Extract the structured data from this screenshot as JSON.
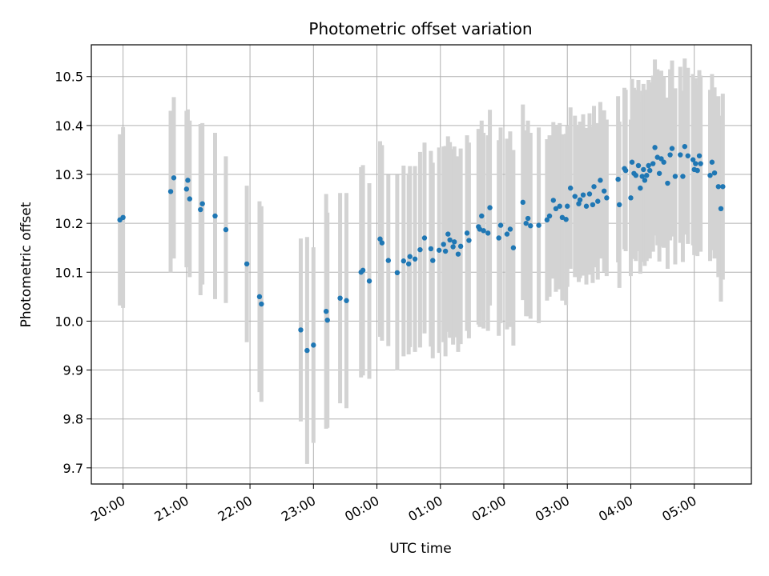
{
  "chart_data": {
    "type": "scatter",
    "title": "Photometric offset variation",
    "xlabel": "UTC time",
    "ylabel": "Photometric offset",
    "x_unit": "hours",
    "xlim": [
      -0.5,
      9.9
    ],
    "ylim": [
      9.667,
      10.565
    ],
    "xticks": [
      {
        "value": 0,
        "label": "20:00"
      },
      {
        "value": 1,
        "label": "21:00"
      },
      {
        "value": 2,
        "label": "22:00"
      },
      {
        "value": 3,
        "label": "23:00"
      },
      {
        "value": 4,
        "label": "00:00"
      },
      {
        "value": 5,
        "label": "01:00"
      },
      {
        "value": 6,
        "label": "02:00"
      },
      {
        "value": 7,
        "label": "03:00"
      },
      {
        "value": 8,
        "label": "04:00"
      },
      {
        "value": 9,
        "label": "05:00"
      }
    ],
    "yticks": [
      {
        "value": 9.7,
        "label": "9.7"
      },
      {
        "value": 9.8,
        "label": "9.8"
      },
      {
        "value": 9.9,
        "label": "9.9"
      },
      {
        "value": 10.0,
        "label": "10.0"
      },
      {
        "value": 10.1,
        "label": "10.1"
      },
      {
        "value": 10.2,
        "label": "10.2"
      },
      {
        "value": 10.3,
        "label": "10.3"
      },
      {
        "value": 10.4,
        "label": "10.4"
      },
      {
        "value": 10.5,
        "label": "10.5"
      }
    ],
    "grid": true,
    "colors": {
      "points": "#1f77b4",
      "errorbars": "#d3d3d3",
      "grid": "#b0b0b0"
    },
    "points": [
      [
        -0.05,
        10.207,
        0.175
      ],
      [
        0.0,
        10.212,
        0.185
      ],
      [
        0.75,
        10.265,
        0.165
      ],
      [
        0.8,
        10.293,
        0.165
      ],
      [
        1.0,
        10.27,
        0.16
      ],
      [
        1.02,
        10.288,
        0.145
      ],
      [
        1.05,
        10.25,
        0.16
      ],
      [
        1.22,
        10.228,
        0.175
      ],
      [
        1.25,
        10.24,
        0.165
      ],
      [
        1.45,
        10.215,
        0.17
      ],
      [
        1.62,
        10.187,
        0.15
      ],
      [
        1.95,
        10.117,
        0.16
      ],
      [
        2.15,
        10.05,
        0.195
      ],
      [
        2.18,
        10.035,
        0.2
      ],
      [
        2.8,
        9.982,
        0.187
      ],
      [
        2.9,
        9.94,
        0.232
      ],
      [
        3.0,
        9.951,
        0.2
      ],
      [
        3.2,
        10.02,
        0.24
      ],
      [
        3.22,
        10.002,
        0.22
      ],
      [
        3.42,
        10.047,
        0.215
      ],
      [
        3.52,
        10.042,
        0.22
      ],
      [
        3.75,
        10.1,
        0.215
      ],
      [
        3.78,
        10.104,
        0.215
      ],
      [
        3.88,
        10.082,
        0.2
      ],
      [
        4.05,
        10.168,
        0.2
      ],
      [
        4.08,
        10.16,
        0.2
      ],
      [
        4.18,
        10.124,
        0.175
      ],
      [
        4.32,
        10.099,
        0.2
      ],
      [
        4.42,
        10.123,
        0.195
      ],
      [
        4.5,
        10.117,
        0.185
      ],
      [
        4.52,
        10.132,
        0.185
      ],
      [
        4.6,
        10.127,
        0.19
      ],
      [
        4.68,
        10.146,
        0.2
      ],
      [
        4.75,
        10.17,
        0.195
      ],
      [
        4.85,
        10.148,
        0.2
      ],
      [
        4.88,
        10.124,
        0.2
      ],
      [
        4.98,
        10.145,
        0.21
      ],
      [
        5.05,
        10.157,
        0.2
      ],
      [
        5.08,
        10.143,
        0.215
      ],
      [
        5.12,
        10.178,
        0.2
      ],
      [
        5.15,
        10.166,
        0.2
      ],
      [
        5.2,
        10.152,
        0.2
      ],
      [
        5.22,
        10.162,
        0.195
      ],
      [
        5.28,
        10.137,
        0.2
      ],
      [
        5.32,
        10.153,
        0.2
      ],
      [
        5.42,
        10.18,
        0.2
      ],
      [
        5.45,
        10.165,
        0.2
      ],
      [
        5.6,
        10.193,
        0.2
      ],
      [
        5.62,
        10.188,
        0.2
      ],
      [
        5.65,
        10.215,
        0.195
      ],
      [
        5.68,
        10.185,
        0.2
      ],
      [
        5.75,
        10.18,
        0.2
      ],
      [
        5.78,
        10.232,
        0.2
      ],
      [
        5.92,
        10.17,
        0.2
      ],
      [
        5.95,
        10.196,
        0.2
      ],
      [
        6.05,
        10.178,
        0.195
      ],
      [
        6.1,
        10.188,
        0.2
      ],
      [
        6.15,
        10.15,
        0.2
      ],
      [
        6.3,
        10.243,
        0.2
      ],
      [
        6.35,
        10.2,
        0.19
      ],
      [
        6.38,
        10.21,
        0.2
      ],
      [
        6.42,
        10.195,
        0.19
      ],
      [
        6.55,
        10.196,
        0.2
      ],
      [
        6.68,
        10.207,
        0.165
      ],
      [
        6.72,
        10.215,
        0.165
      ],
      [
        6.78,
        10.247,
        0.16
      ],
      [
        6.82,
        10.23,
        0.17
      ],
      [
        6.88,
        10.235,
        0.17
      ],
      [
        6.92,
        10.212,
        0.17
      ],
      [
        6.98,
        10.208,
        0.175
      ],
      [
        7.0,
        10.235,
        0.165
      ],
      [
        7.05,
        10.272,
        0.165
      ],
      [
        7.12,
        10.255,
        0.165
      ],
      [
        7.18,
        10.24,
        0.16
      ],
      [
        7.2,
        10.248,
        0.16
      ],
      [
        7.25,
        10.258,
        0.165
      ],
      [
        7.3,
        10.235,
        0.16
      ],
      [
        7.35,
        10.26,
        0.165
      ],
      [
        7.4,
        10.238,
        0.16
      ],
      [
        7.42,
        10.275,
        0.165
      ],
      [
        7.48,
        10.245,
        0.16
      ],
      [
        7.52,
        10.288,
        0.16
      ],
      [
        7.58,
        10.266,
        0.165
      ],
      [
        7.62,
        10.252,
        0.16
      ],
      [
        7.8,
        10.29,
        0.17
      ],
      [
        7.82,
        10.238,
        0.17
      ],
      [
        7.9,
        10.312,
        0.165
      ],
      [
        7.92,
        10.308,
        0.165
      ],
      [
        8.0,
        10.252,
        0.16
      ],
      [
        8.02,
        10.325,
        0.17
      ],
      [
        8.05,
        10.302,
        0.175
      ],
      [
        8.08,
        10.298,
        0.175
      ],
      [
        8.12,
        10.318,
        0.175
      ],
      [
        8.15,
        10.272,
        0.175
      ],
      [
        8.18,
        10.296,
        0.175
      ],
      [
        8.2,
        10.31,
        0.175
      ],
      [
        8.22,
        10.288,
        0.175
      ],
      [
        8.25,
        10.298,
        0.175
      ],
      [
        8.28,
        10.318,
        0.175
      ],
      [
        8.3,
        10.308,
        0.18
      ],
      [
        8.35,
        10.322,
        0.18
      ],
      [
        8.38,
        10.355,
        0.18
      ],
      [
        8.42,
        10.335,
        0.18
      ],
      [
        8.45,
        10.302,
        0.18
      ],
      [
        8.48,
        10.332,
        0.18
      ],
      [
        8.52,
        10.325,
        0.175
      ],
      [
        8.58,
        10.282,
        0.175
      ],
      [
        8.62,
        10.34,
        0.175
      ],
      [
        8.65,
        10.353,
        0.18
      ],
      [
        8.7,
        10.296,
        0.18
      ],
      [
        8.78,
        10.34,
        0.18
      ],
      [
        8.82,
        10.296,
        0.175
      ],
      [
        8.85,
        10.357,
        0.18
      ],
      [
        8.9,
        10.338,
        0.18
      ],
      [
        8.98,
        10.33,
        0.175
      ],
      [
        9.0,
        10.31,
        0.175
      ],
      [
        9.02,
        10.322,
        0.175
      ],
      [
        9.05,
        10.308,
        0.175
      ],
      [
        9.08,
        10.338,
        0.175
      ],
      [
        9.1,
        10.322,
        0.18
      ],
      [
        9.25,
        10.298,
        0.175
      ],
      [
        9.28,
        10.325,
        0.18
      ],
      [
        9.32,
        10.303,
        0.175
      ],
      [
        9.38,
        10.275,
        0.185
      ],
      [
        9.42,
        10.23,
        0.19
      ],
      [
        9.45,
        10.275,
        0.19
      ]
    ]
  }
}
